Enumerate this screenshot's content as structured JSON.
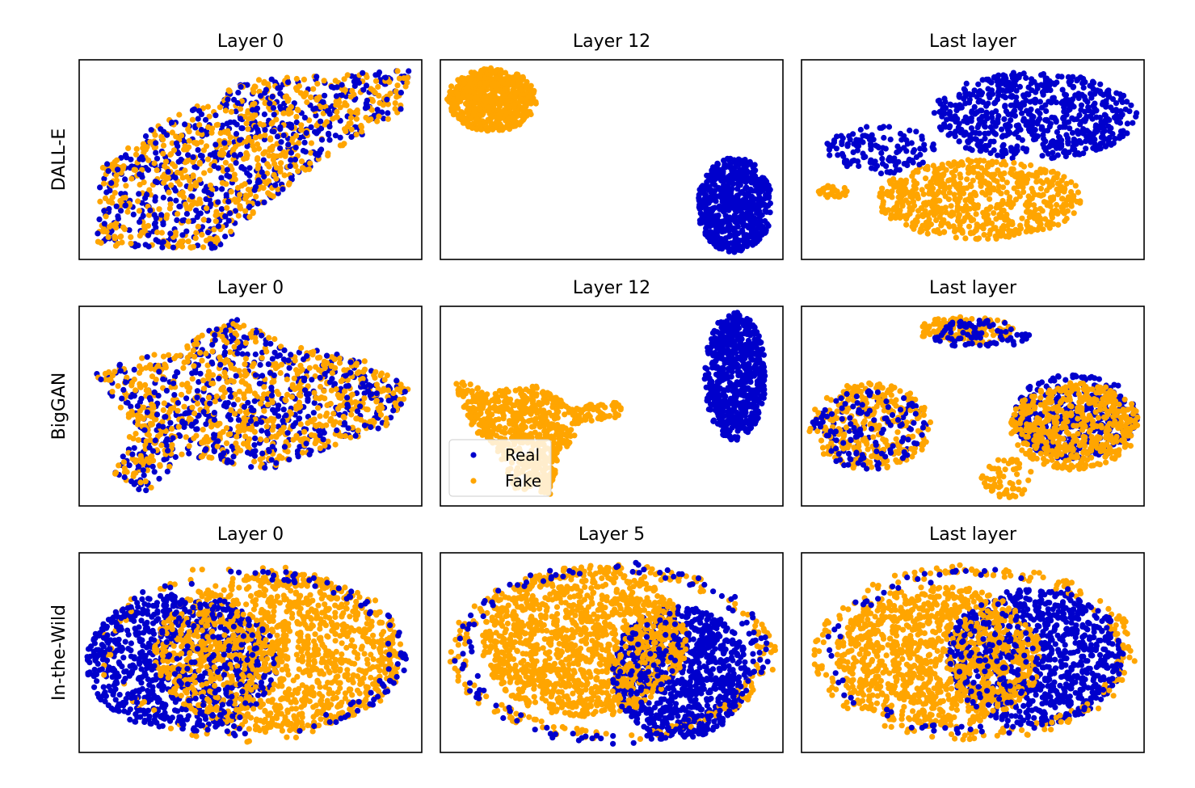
{
  "colors": {
    "real": "#0000cc",
    "fake": "#ffa500",
    "frame": "#000000"
  },
  "rows": [
    {
      "label": "DALL-E",
      "panels": [
        {
          "title": "Layer 0",
          "chart_data": {
            "type": "scatter",
            "series": [
              {
                "name": "Real",
                "clusters": [
                  {
                    "shape": "poly",
                    "points": [
                      [
                        0.05,
                        0.93
                      ],
                      [
                        0.06,
                        0.55
                      ],
                      [
                        0.2,
                        0.35
                      ],
                      [
                        0.5,
                        0.1
                      ],
                      [
                        0.97,
                        0.05
                      ],
                      [
                        0.95,
                        0.25
                      ],
                      [
                        0.75,
                        0.45
                      ],
                      [
                        0.52,
                        0.75
                      ],
                      [
                        0.4,
                        0.95
                      ]
                    ],
                    "n": 600
                  }
                ]
              },
              {
                "name": "Fake",
                "clusters": [
                  {
                    "shape": "poly",
                    "points": [
                      [
                        0.05,
                        0.93
                      ],
                      [
                        0.06,
                        0.55
                      ],
                      [
                        0.2,
                        0.35
                      ],
                      [
                        0.5,
                        0.1
                      ],
                      [
                        0.97,
                        0.05
                      ],
                      [
                        0.95,
                        0.25
                      ],
                      [
                        0.75,
                        0.45
                      ],
                      [
                        0.52,
                        0.75
                      ],
                      [
                        0.4,
                        0.95
                      ]
                    ],
                    "n": 650
                  }
                ]
              }
            ]
          }
        },
        {
          "title": "Layer 12",
          "chart_data": {
            "type": "scatter",
            "series": [
              {
                "name": "Real",
                "clusters": [
                  {
                    "shape": "ellipse",
                    "cx": 0.86,
                    "cy": 0.73,
                    "rx": 0.11,
                    "ry": 0.24,
                    "n": 650,
                    "jitter": 0.02
                  }
                ]
              },
              {
                "name": "Fake",
                "clusters": [
                  {
                    "shape": "ellipse",
                    "cx": 0.15,
                    "cy": 0.2,
                    "rx": 0.13,
                    "ry": 0.16,
                    "n": 650,
                    "jitter": 0.02
                  }
                ]
              }
            ]
          }
        },
        {
          "title": "Last layer",
          "chart_data": {
            "type": "scatter",
            "series": [
              {
                "name": "Real",
                "clusters": [
                  {
                    "shape": "ellipse",
                    "cx": 0.68,
                    "cy": 0.28,
                    "rx": 0.3,
                    "ry": 0.22,
                    "n": 650
                  },
                  {
                    "shape": "ellipse",
                    "cx": 0.23,
                    "cy": 0.45,
                    "rx": 0.16,
                    "ry": 0.12,
                    "n": 130
                  }
                ]
              },
              {
                "name": "Fake",
                "clusters": [
                  {
                    "shape": "ellipse",
                    "cx": 0.52,
                    "cy": 0.7,
                    "rx": 0.3,
                    "ry": 0.2,
                    "n": 650
                  },
                  {
                    "shape": "ellipse",
                    "cx": 0.09,
                    "cy": 0.66,
                    "rx": 0.05,
                    "ry": 0.03,
                    "n": 30
                  }
                ]
              }
            ]
          }
        }
      ]
    },
    {
      "label": "BigGAN",
      "panels": [
        {
          "title": "Layer 0",
          "chart_data": {
            "type": "scatter",
            "series": [
              {
                "name": "Real",
                "clusters": [
                  {
                    "shape": "poly",
                    "points": [
                      [
                        0.04,
                        0.33
                      ],
                      [
                        0.3,
                        0.2
                      ],
                      [
                        0.45,
                        0.05
                      ],
                      [
                        0.62,
                        0.2
                      ],
                      [
                        0.82,
                        0.25
                      ],
                      [
                        0.97,
                        0.42
                      ],
                      [
                        0.9,
                        0.6
                      ],
                      [
                        0.55,
                        0.82
                      ],
                      [
                        0.3,
                        0.75
                      ],
                      [
                        0.2,
                        0.95
                      ],
                      [
                        0.1,
                        0.85
                      ],
                      [
                        0.16,
                        0.6
                      ]
                    ],
                    "n": 600
                  }
                ]
              },
              {
                "name": "Fake",
                "clusters": [
                  {
                    "shape": "poly",
                    "points": [
                      [
                        0.04,
                        0.33
                      ],
                      [
                        0.3,
                        0.2
                      ],
                      [
                        0.45,
                        0.05
                      ],
                      [
                        0.62,
                        0.2
                      ],
                      [
                        0.82,
                        0.25
                      ],
                      [
                        0.97,
                        0.42
                      ],
                      [
                        0.9,
                        0.6
                      ],
                      [
                        0.55,
                        0.82
                      ],
                      [
                        0.3,
                        0.75
                      ],
                      [
                        0.2,
                        0.95
                      ],
                      [
                        0.1,
                        0.85
                      ],
                      [
                        0.16,
                        0.6
                      ]
                    ],
                    "n": 700
                  }
                ]
              }
            ]
          }
        },
        {
          "title": "Layer 12",
          "chart_data": {
            "type": "scatter",
            "series": [
              {
                "name": "Real",
                "clusters": [
                  {
                    "shape": "ellipse",
                    "cx": 0.86,
                    "cy": 0.35,
                    "rx": 0.09,
                    "ry": 0.32,
                    "n": 650,
                    "jitter": 0.02
                  }
                ]
              },
              {
                "name": "Fake",
                "clusters": [
                  {
                    "shape": "poly",
                    "points": [
                      [
                        0.04,
                        0.36
                      ],
                      [
                        0.14,
                        0.42
                      ],
                      [
                        0.28,
                        0.4
                      ],
                      [
                        0.38,
                        0.5
                      ],
                      [
                        0.52,
                        0.48
                      ],
                      [
                        0.54,
                        0.55
                      ],
                      [
                        0.42,
                        0.58
                      ],
                      [
                        0.35,
                        0.75
                      ],
                      [
                        0.32,
                        0.95
                      ],
                      [
                        0.22,
                        0.92
                      ],
                      [
                        0.16,
                        0.7
                      ],
                      [
                        0.08,
                        0.6
                      ]
                    ],
                    "n": 700,
                    "jitter": 0.01
                  }
                ]
              }
            ]
          }
        },
        {
          "title": "Last layer",
          "chart_data": {
            "type": "scatter",
            "series": [
              {
                "name": "Real",
                "clusters": [
                  {
                    "shape": "ellipse",
                    "cx": 0.8,
                    "cy": 0.55,
                    "rx": 0.18,
                    "ry": 0.22,
                    "n": 400
                  },
                  {
                    "shape": "ellipse",
                    "cx": 0.2,
                    "cy": 0.62,
                    "rx": 0.17,
                    "ry": 0.2,
                    "n": 150
                  },
                  {
                    "shape": "ellipse",
                    "cx": 0.52,
                    "cy": 0.14,
                    "rx": 0.15,
                    "ry": 0.07,
                    "n": 80
                  }
                ]
              },
              {
                "name": "Fake",
                "clusters": [
                  {
                    "shape": "ellipse",
                    "cx": 0.8,
                    "cy": 0.6,
                    "rx": 0.19,
                    "ry": 0.22,
                    "n": 500
                  },
                  {
                    "shape": "ellipse",
                    "cx": 0.2,
                    "cy": 0.6,
                    "rx": 0.18,
                    "ry": 0.22,
                    "n": 300
                  },
                  {
                    "shape": "ellipse",
                    "cx": 0.48,
                    "cy": 0.12,
                    "rx": 0.14,
                    "ry": 0.07,
                    "n": 120
                  },
                  {
                    "shape": "ellipse",
                    "cx": 0.6,
                    "cy": 0.86,
                    "rx": 0.08,
                    "ry": 0.1,
                    "n": 60
                  }
                ]
              }
            ]
          }
        }
      ],
      "legend": {
        "entries": [
          "Real",
          "Fake"
        ]
      }
    },
    {
      "label": "In-the-Wild",
      "panels": [
        {
          "title": "Layer 0",
          "chart_data": {
            "type": "scatter",
            "series": [
              {
                "name": "Real",
                "clusters": [
                  {
                    "shape": "ellipse",
                    "cx": 0.3,
                    "cy": 0.55,
                    "rx": 0.28,
                    "ry": 0.35,
                    "n": 900
                  },
                  {
                    "shape": "ring",
                    "cx": 0.5,
                    "cy": 0.5,
                    "rx": 0.46,
                    "ry": 0.42,
                    "n": 120
                  }
                ]
              },
              {
                "name": "Fake",
                "clusters": [
                  {
                    "shape": "ellipse",
                    "cx": 0.58,
                    "cy": 0.5,
                    "rx": 0.36,
                    "ry": 0.4,
                    "n": 1300
                  },
                  {
                    "shape": "ring",
                    "cx": 0.5,
                    "cy": 0.5,
                    "rx": 0.45,
                    "ry": 0.45,
                    "n": 80
                  }
                ]
              }
            ]
          }
        },
        {
          "title": "Layer 5",
          "chart_data": {
            "type": "scatter",
            "series": [
              {
                "name": "Real",
                "clusters": [
                  {
                    "shape": "ellipse",
                    "cx": 0.7,
                    "cy": 0.6,
                    "rx": 0.2,
                    "ry": 0.33,
                    "n": 900
                  },
                  {
                    "shape": "ring",
                    "cx": 0.5,
                    "cy": 0.5,
                    "rx": 0.46,
                    "ry": 0.46,
                    "n": 140
                  }
                ]
              },
              {
                "name": "Fake",
                "clusters": [
                  {
                    "shape": "ellipse",
                    "cx": 0.42,
                    "cy": 0.45,
                    "rx": 0.3,
                    "ry": 0.38,
                    "n": 1300
                  },
                  {
                    "shape": "ring",
                    "cx": 0.5,
                    "cy": 0.5,
                    "rx": 0.48,
                    "ry": 0.44,
                    "n": 220
                  }
                ]
              }
            ]
          }
        },
        {
          "title": "Last layer",
          "chart_data": {
            "type": "scatter",
            "series": [
              {
                "name": "Real",
                "clusters": [
                  {
                    "shape": "ellipse",
                    "cx": 0.68,
                    "cy": 0.52,
                    "rx": 0.26,
                    "ry": 0.34,
                    "n": 900
                  },
                  {
                    "shape": "ring",
                    "cx": 0.5,
                    "cy": 0.5,
                    "rx": 0.44,
                    "ry": 0.42,
                    "n": 80
                  }
                ]
              },
              {
                "name": "Fake",
                "clusters": [
                  {
                    "shape": "ellipse",
                    "cx": 0.4,
                    "cy": 0.52,
                    "rx": 0.3,
                    "ry": 0.36,
                    "n": 1200
                  },
                  {
                    "shape": "ring",
                    "cx": 0.5,
                    "cy": 0.5,
                    "rx": 0.48,
                    "ry": 0.44,
                    "n": 200
                  }
                ]
              }
            ]
          }
        }
      ]
    }
  ]
}
